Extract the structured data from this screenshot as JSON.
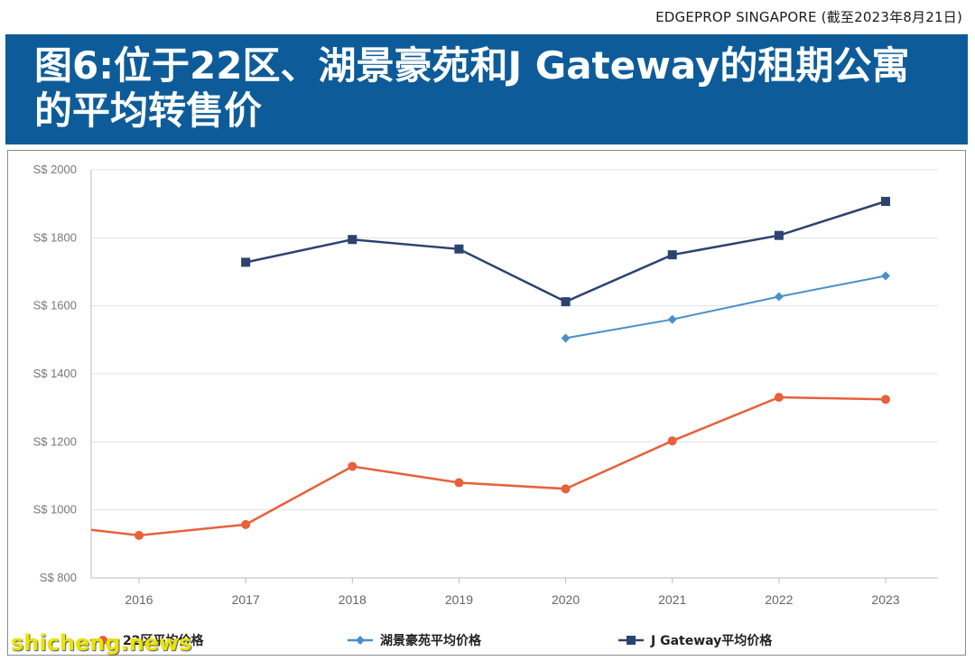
{
  "source": "EDGEPROP SINGAPORE (截至2023年8月21日)",
  "title_line1": "图6:位于22区、湖景豪苑和J Gateway的租期公寓",
  "title_line2": "的平均转售价",
  "watermark": "shicheng.news",
  "colors": {
    "banner": "#0d5c99",
    "series1": "#e8603c",
    "series2": "#4a90c8",
    "series3": "#2c4370"
  },
  "chart_data": {
    "type": "line",
    "x": [
      2016,
      2017,
      2018,
      2019,
      2020,
      2021,
      2022,
      2023
    ],
    "y_ticks": [
      "S$ 800",
      "S$ 1000",
      "S$ 1200",
      "S$ 1400",
      "S$ 1600",
      "S$ 1800",
      "S$ 2000"
    ],
    "ylim": [
      800,
      2000
    ],
    "grid": true,
    "legend_position": "bottom",
    "series": [
      {
        "name": "22区平均价格",
        "marker": "circle",
        "x": [
          2015.5,
          2016,
          2017,
          2018,
          2019,
          2020,
          2021,
          2022,
          2023
        ],
        "values": [
          943,
          925,
          957,
          1128,
          1080,
          1062,
          1203,
          1331,
          1325
        ]
      },
      {
        "name": "湖景豪苑平均价格",
        "marker": "diamond",
        "x": [
          2020,
          2021,
          2022,
          2023
        ],
        "values": [
          1505,
          1560,
          1627,
          1688
        ]
      },
      {
        "name": "J Gateway平均价格",
        "marker": "square",
        "x": [
          2017,
          2018,
          2019,
          2020,
          2021,
          2022,
          2023
        ],
        "values": [
          1728,
          1795,
          1767,
          1612,
          1750,
          1807,
          1907
        ]
      }
    ]
  }
}
